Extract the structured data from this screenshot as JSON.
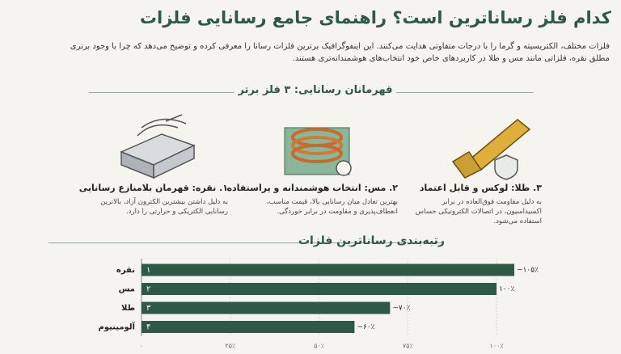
{
  "header": {
    "title": "کدام فلز رساناترین است؟ راهنمای جامع رسانایی فلزات",
    "intro": "فلزات مختلف، الکتریسیته و گرما را با درجات متفاوتی هدایت می‌کنند. این اینفوگرافیک برترین فلزات رسانا را معرفی کرده و توضیح می‌دهد که چرا با وجود برتری مطلق نقره، فلزاتی مانند مس و طلا در کاربردهای خاص خود انتخاب‌های هوشمندانه‌تری هستند."
  },
  "section_title": "قهرمانان رسانایی: ۳ فلز برتر",
  "cards": [
    {
      "title": "۱. نقره: قهرمان بلامنازع رسانایی",
      "text": "به دلیل داشتن بیشترین الکترون آزاد، بالاترین رسانایی الکتریکی و حرارتی را دارد."
    },
    {
      "title": "۲. مس: انتخاب هوشمندانه و پراستفاده",
      "text": "بهترین تعادل میان رسانایی بالا، قیمت مناسب، انعطاف‌پذیری و مقاومت در برابر خوردگی."
    },
    {
      "title": "۳. طلا: لوکس و قابل اعتماد",
      "text": "به دلیل مقاومت فوق‌العاده در برابر اکسیداسیون، در اتصالات الکترونیکی حساس استفاده می‌شود."
    }
  ],
  "chart_data": {
    "type": "hbar",
    "title": "رتبه‌بندی رساناترین فلزات",
    "categories": [
      "نقره",
      "مس",
      "طلا",
      "آلومینیوم"
    ],
    "ranks": [
      "۱",
      "۲",
      "۳",
      "۴"
    ],
    "values": [
      105,
      100,
      70,
      60
    ],
    "value_labels": [
      "~۱۰۵٪",
      "۱۰۰٪",
      "~۷۰٪",
      "~۶۰٪"
    ],
    "color": "#2e5a44",
    "xlim": [
      0,
      110
    ],
    "xticks": [
      {
        "value": 0,
        "label": "۰"
      },
      {
        "value": 25,
        "label": "۲۵٪"
      },
      {
        "value": 50,
        "label": "۵۰٪"
      },
      {
        "value": 75,
        "label": "۷۵٪"
      },
      {
        "value": 100,
        "label": "۱۰۰٪"
      }
    ],
    "grid": true
  }
}
